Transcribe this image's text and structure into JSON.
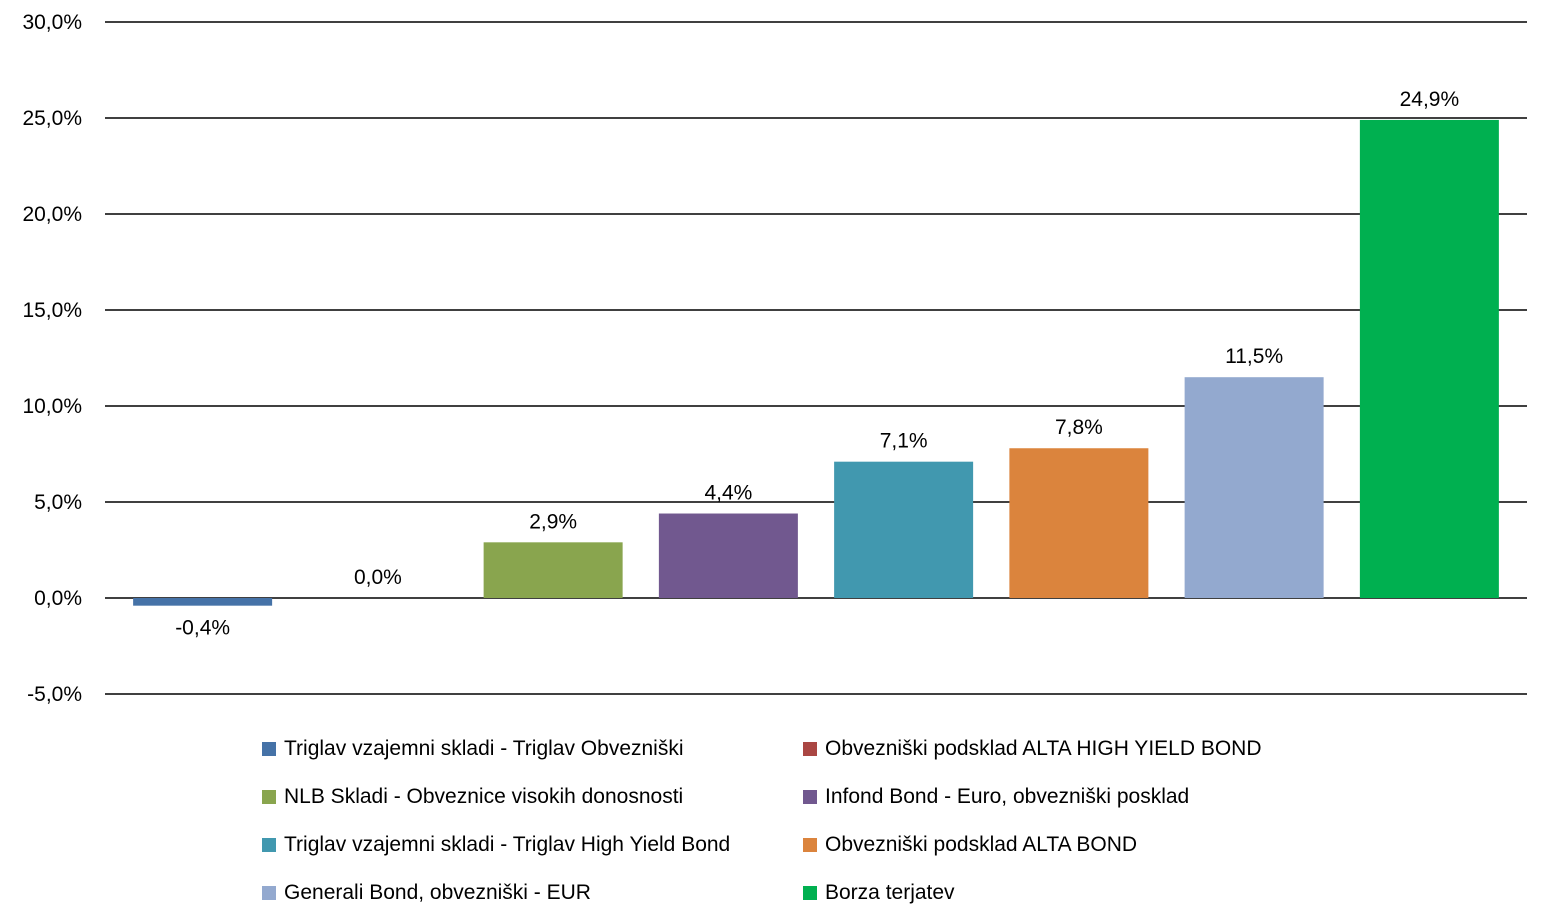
{
  "chart_data": {
    "type": "bar",
    "categories": [
      "Triglav vzajemni skladi - Triglav Obvezniški",
      "Obvezniški podsklad ALTA HIGH YIELD BOND",
      "NLB Skladi - Obveznice visokih donosnosti",
      "Infond Bond - Euro, obvezniški posklad",
      "Triglav vzajemni skladi - Triglav High Yield Bond",
      "Obvezniški podsklad ALTA BOND",
      "Generali Bond, obvezniški - EUR",
      "Borza terjatev"
    ],
    "values": [
      -0.4,
      0.0,
      2.9,
      4.4,
      7.1,
      7.8,
      11.5,
      24.9
    ],
    "value_labels": [
      "-0,4%",
      "0,0%",
      "2,9%",
      "4,4%",
      "7,1%",
      "7,8%",
      "11,5%",
      "24,9%"
    ],
    "colors": [
      "#4572A7",
      "#AA4643",
      "#89A54E",
      "#71588F",
      "#4198AF",
      "#DB843D",
      "#93A9CF",
      "#00B050"
    ],
    "ylim": [
      -5,
      30
    ],
    "yticks": [
      -5,
      0,
      5,
      10,
      15,
      20,
      25,
      30
    ],
    "ytick_labels": [
      "-5,0%",
      "0,0%",
      "5,0%",
      "10,0%",
      "15,0%",
      "20,0%",
      "25,0%",
      "30,0%"
    ],
    "grid": true,
    "legend_position": "bottom",
    "title": "",
    "xlabel": "",
    "ylabel": ""
  }
}
